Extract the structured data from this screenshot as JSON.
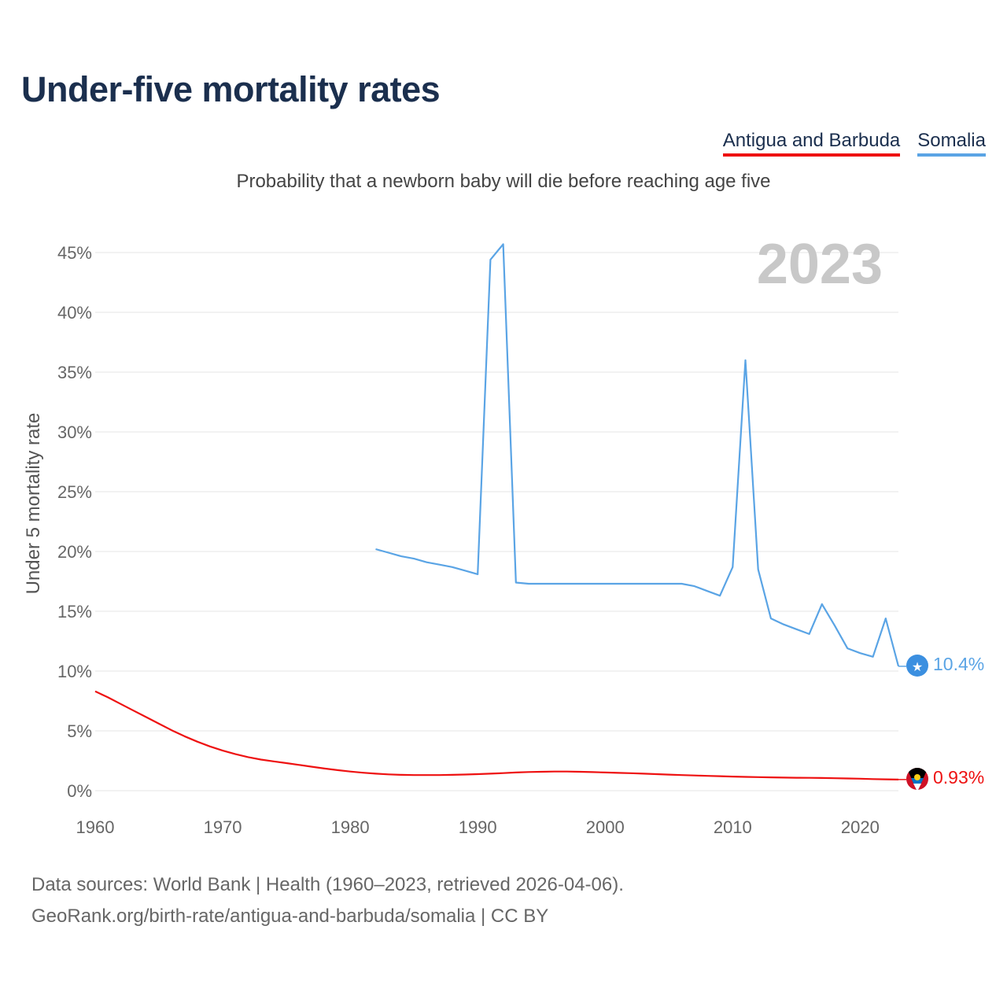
{
  "title": "Under-five mortality rates",
  "subtitle": "Probability that a newborn baby will die before reaching age five",
  "legend": [
    {
      "name": "Antigua and Barbuda",
      "color": "#ee1111"
    },
    {
      "name": "Somalia",
      "color": "#5aa4e5"
    }
  ],
  "footer": {
    "line1": "Data sources: World Bank | Health (1960–2023, retrieved 2026-04-06).",
    "line2": "GeoRank.org/birth-rate/antigua-and-barbuda/somalia | CC BY"
  },
  "chart_data": {
    "type": "line",
    "title": "Under-five mortality rates",
    "ylabel": "Under 5 mortality rate",
    "xlabel": "",
    "year_label": "2023",
    "xlim": [
      1960,
      2023
    ],
    "ylim": [
      0,
      45
    ],
    "x_ticks": [
      1960,
      1970,
      1980,
      1990,
      2000,
      2010,
      2020
    ],
    "y_ticks": [
      0,
      5,
      10,
      15,
      20,
      25,
      30,
      35,
      40,
      45
    ],
    "y_tick_labels": [
      "0%",
      "5%",
      "10%",
      "15%",
      "20%",
      "25%",
      "30%",
      "35%",
      "40%",
      "45%"
    ],
    "series": [
      {
        "name": "Antigua and Barbuda",
        "color": "#ee1111",
        "end_label": "0.93%",
        "points": [
          [
            1960,
            8.3
          ],
          [
            1961,
            7.8
          ],
          [
            1962,
            7.25
          ],
          [
            1963,
            6.7
          ],
          [
            1964,
            6.15
          ],
          [
            1965,
            5.6
          ],
          [
            1966,
            5.05
          ],
          [
            1967,
            4.55
          ],
          [
            1968,
            4.1
          ],
          [
            1969,
            3.7
          ],
          [
            1970,
            3.35
          ],
          [
            1971,
            3.05
          ],
          [
            1972,
            2.8
          ],
          [
            1973,
            2.6
          ],
          [
            1974,
            2.45
          ],
          [
            1975,
            2.3
          ],
          [
            1976,
            2.15
          ],
          [
            1977,
            2.0
          ],
          [
            1978,
            1.85
          ],
          [
            1979,
            1.72
          ],
          [
            1980,
            1.6
          ],
          [
            1981,
            1.5
          ],
          [
            1982,
            1.42
          ],
          [
            1983,
            1.36
          ],
          [
            1984,
            1.32
          ],
          [
            1985,
            1.3
          ],
          [
            1986,
            1.3
          ],
          [
            1987,
            1.3
          ],
          [
            1988,
            1.32
          ],
          [
            1989,
            1.35
          ],
          [
            1990,
            1.38
          ],
          [
            1991,
            1.42
          ],
          [
            1992,
            1.47
          ],
          [
            1993,
            1.52
          ],
          [
            1994,
            1.56
          ],
          [
            1995,
            1.58
          ],
          [
            1996,
            1.6
          ],
          [
            1997,
            1.6
          ],
          [
            1998,
            1.58
          ],
          [
            1999,
            1.55
          ],
          [
            2000,
            1.52
          ],
          [
            2001,
            1.49
          ],
          [
            2002,
            1.46
          ],
          [
            2003,
            1.42
          ],
          [
            2004,
            1.38
          ],
          [
            2005,
            1.34
          ],
          [
            2006,
            1.3
          ],
          [
            2007,
            1.27
          ],
          [
            2008,
            1.24
          ],
          [
            2009,
            1.21
          ],
          [
            2010,
            1.18
          ],
          [
            2011,
            1.15
          ],
          [
            2012,
            1.13
          ],
          [
            2013,
            1.11
          ],
          [
            2014,
            1.09
          ],
          [
            2015,
            1.08
          ],
          [
            2016,
            1.07
          ],
          [
            2017,
            1.06
          ],
          [
            2018,
            1.04
          ],
          [
            2019,
            1.02
          ],
          [
            2020,
            1.0
          ],
          [
            2021,
            0.97
          ],
          [
            2022,
            0.95
          ],
          [
            2023,
            0.93
          ]
        ]
      },
      {
        "name": "Somalia",
        "color": "#5aa4e5",
        "end_label": "10.4%",
        "points": [
          [
            1982,
            20.2
          ],
          [
            1983,
            19.9
          ],
          [
            1984,
            19.6
          ],
          [
            1985,
            19.4
          ],
          [
            1986,
            19.1
          ],
          [
            1987,
            18.9
          ],
          [
            1988,
            18.7
          ],
          [
            1989,
            18.4
          ],
          [
            1990,
            18.1
          ],
          [
            1991,
            44.4
          ],
          [
            1992,
            45.7
          ],
          [
            1993,
            17.4
          ],
          [
            1994,
            17.3
          ],
          [
            1995,
            17.3
          ],
          [
            1996,
            17.3
          ],
          [
            1997,
            17.3
          ],
          [
            1998,
            17.3
          ],
          [
            1999,
            17.3
          ],
          [
            2000,
            17.3
          ],
          [
            2001,
            17.3
          ],
          [
            2002,
            17.3
          ],
          [
            2003,
            17.3
          ],
          [
            2004,
            17.3
          ],
          [
            2005,
            17.3
          ],
          [
            2006,
            17.3
          ],
          [
            2007,
            17.1
          ],
          [
            2008,
            16.7
          ],
          [
            2009,
            16.3
          ],
          [
            2010,
            18.7
          ],
          [
            2011,
            36.0
          ],
          [
            2012,
            18.5
          ],
          [
            2013,
            14.4
          ],
          [
            2014,
            13.9
          ],
          [
            2015,
            13.5
          ],
          [
            2016,
            13.1
          ],
          [
            2017,
            15.6
          ],
          [
            2018,
            13.8
          ],
          [
            2019,
            11.9
          ],
          [
            2020,
            11.5
          ],
          [
            2021,
            11.2
          ],
          [
            2022,
            14.4
          ],
          [
            2023,
            10.4
          ]
        ]
      }
    ]
  }
}
